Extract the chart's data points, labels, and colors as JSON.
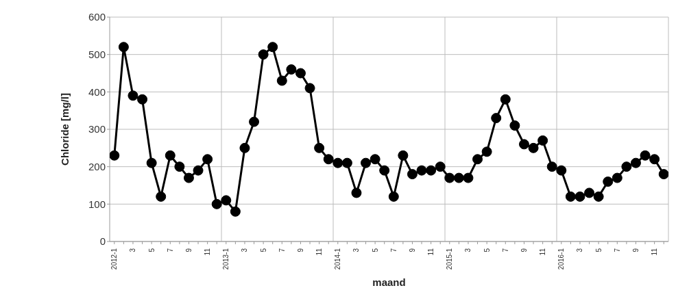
{
  "chart_data": {
    "type": "line",
    "xlabel": "maand",
    "ylabel": "Chloride [mg/l]",
    "categories": [
      "2012-1",
      null,
      "3",
      null,
      "5",
      null,
      "7",
      null,
      "9",
      null,
      "11",
      null,
      "2013-1",
      null,
      "3",
      null,
      "5",
      null,
      "7",
      null,
      "9",
      null,
      "11",
      null,
      "2014-1",
      null,
      "3",
      null,
      "5",
      null,
      "7",
      null,
      "9",
      null,
      "11",
      null,
      "2015-1",
      null,
      "3",
      null,
      "5",
      null,
      "7",
      null,
      "9",
      null,
      "11",
      null,
      "2016-1",
      null,
      "3",
      null,
      "5",
      null,
      "7",
      null,
      "9",
      null,
      "11",
      null
    ],
    "series": [
      {
        "color": "#000000",
        "values": [
          230,
          520,
          390,
          380,
          210,
          120,
          230,
          200,
          170,
          190,
          220,
          100,
          110,
          80,
          250,
          320,
          500,
          520,
          430,
          460,
          450,
          410,
          250,
          220,
          210,
          210,
          130,
          210,
          220,
          190,
          120,
          230,
          180,
          190,
          190,
          200,
          170,
          170,
          170,
          220,
          240,
          330,
          380,
          310,
          260,
          250,
          270,
          200,
          190,
          120,
          120,
          130,
          120,
          160,
          170,
          200,
          210,
          230,
          220,
          180
        ]
      }
    ],
    "ylim": [
      0,
      600
    ],
    "yticks": [
      0,
      100,
      200,
      300,
      400,
      500,
      600
    ],
    "grid": true,
    "marker": "circle",
    "line_style": "solid"
  }
}
